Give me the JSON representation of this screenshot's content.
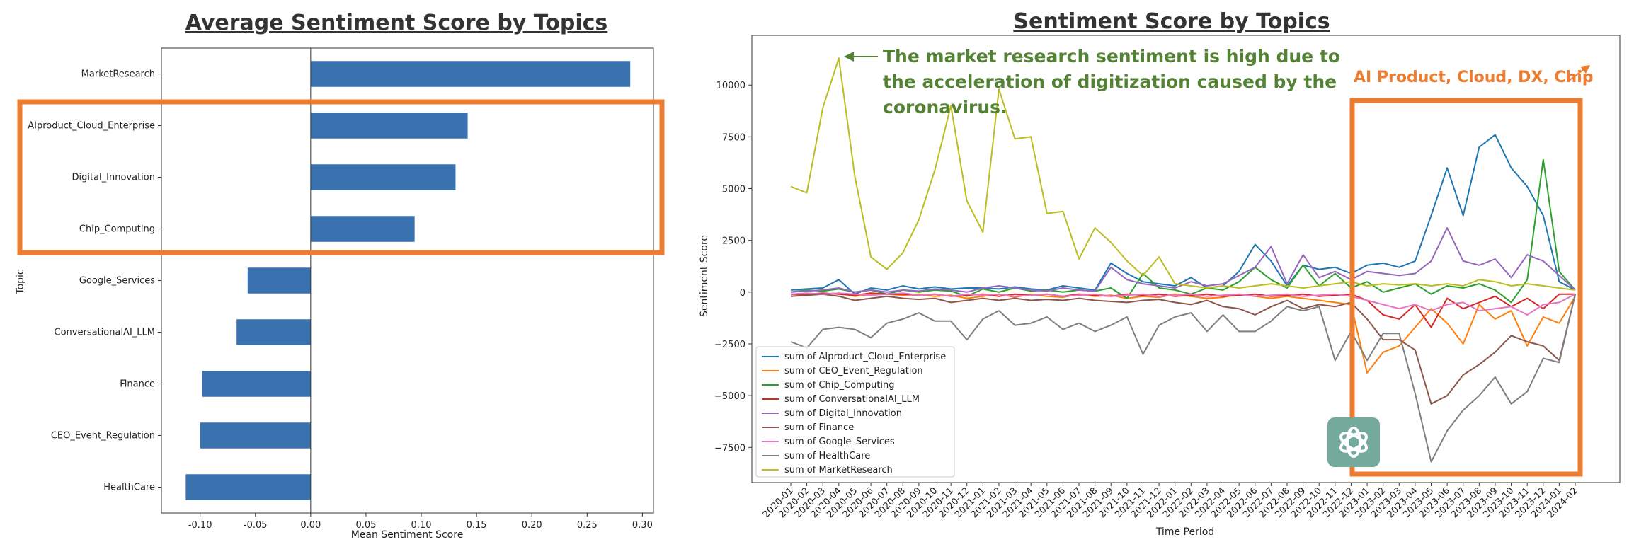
{
  "chart_data": [
    {
      "type": "bar",
      "orientation": "horizontal",
      "title": "Average Sentiment Score by Topics",
      "xlabel": "Mean Sentiment Score",
      "ylabel": "Topic",
      "xlim": [
        -0.135,
        0.31
      ],
      "xticks": [
        "-0.10",
        "-0.05",
        "0.00",
        "0.05",
        "0.10",
        "0.15",
        "0.20",
        "0.25",
        "0.30"
      ],
      "xtick_values": [
        -0.1,
        -0.05,
        0.0,
        0.05,
        0.1,
        0.15,
        0.2,
        0.25,
        0.3
      ],
      "categories": [
        "MarketResearch",
        "AIproduct_Cloud_Enterprise",
        "Digital_Innovation",
        "Chip_Computing",
        "Google_Services",
        "ConversationalAI_LLM",
        "Finance",
        "CEO_Event_Regulation",
        "HealthCare"
      ],
      "values": [
        0.289,
        0.142,
        0.131,
        0.094,
        -0.057,
        -0.067,
        -0.098,
        -0.1,
        -0.113
      ],
      "bar_color": "#3A72B0",
      "highlight_color": "#ED7D31",
      "highlight_categories": [
        "AIproduct_Cloud_Enterprise",
        "Digital_Innovation",
        "Chip_Computing"
      ]
    },
    {
      "type": "line",
      "title": "Sentiment Score by Topics",
      "xlabel": "Time Period",
      "ylabel": "Sentiment Score",
      "ylim": [
        -9200,
        12400
      ],
      "yticks": [
        "−7500",
        "−5000",
        "−2500",
        "0",
        "2500",
        "5000",
        "7500",
        "10000"
      ],
      "ytick_values": [
        -7500,
        -5000,
        -2500,
        0,
        2500,
        5000,
        7500,
        10000
      ],
      "x": [
        "2020-01",
        "2020-02",
        "2020-03",
        "2020-04",
        "2020-05",
        "2020-06",
        "2020-07",
        "2020-08",
        "2020-09",
        "2020-10",
        "2020-11",
        "2020-12",
        "2021-01",
        "2021-02",
        "2021-03",
        "2021-04",
        "2021-05",
        "2021-06",
        "2021-07",
        "2021-08",
        "2021-09",
        "2021-10",
        "2021-11",
        "2021-12",
        "2022-01",
        "2022-02",
        "2022-03",
        "2022-04",
        "2022-05",
        "2022-06",
        "2022-07",
        "2022-08",
        "2022-09",
        "2022-10",
        "2022-11",
        "2022-12",
        "2023-01",
        "2023-02",
        "2023-03",
        "2023-04",
        "2023-05",
        "2023-06",
        "2023-07",
        "2023-08",
        "2023-09",
        "2023-10",
        "2023-11",
        "2023-12",
        "2024-01",
        "2024-02"
      ],
      "legend_location": "lower-left",
      "series": [
        {
          "name": "sum of AIproduct_Cloud_Enterprise",
          "color": "#1f77b4",
          "values": [
            100,
            150,
            200,
            600,
            -100,
            200,
            100,
            300,
            150,
            250,
            150,
            200,
            200,
            150,
            250,
            150,
            100,
            300,
            200,
            100,
            1400,
            900,
            500,
            400,
            300,
            700,
            200,
            300,
            1000,
            2300,
            1500,
            300,
            1300,
            1100,
            1200,
            900,
            1300,
            1400,
            1200,
            1500,
            3700,
            6000,
            3700,
            7000,
            7600,
            6000,
            5100,
            3700,
            500,
            100
          ]
        },
        {
          "name": "sum of CEO_Event_Regulation",
          "color": "#ff7f0e",
          "values": [
            -100,
            -150,
            -100,
            -50,
            -200,
            -100,
            -100,
            -150,
            -100,
            -200,
            -150,
            -300,
            -200,
            -100,
            -250,
            -100,
            -200,
            -250,
            -100,
            -200,
            -150,
            -300,
            -200,
            -250,
            -100,
            -200,
            -300,
            -250,
            -100,
            -200,
            -300,
            -200,
            -300,
            -400,
            -500,
            -600,
            -3900,
            -2900,
            -2600,
            -1700,
            -800,
            -1500,
            -2500,
            -600,
            -1300,
            -900,
            -2600,
            -1200,
            -1500,
            -200
          ]
        },
        {
          "name": "sum of Chip_Computing",
          "color": "#2ca02c",
          "values": [
            0,
            100,
            50,
            150,
            0,
            100,
            -100,
            100,
            0,
            100,
            50,
            -200,
            150,
            0,
            200,
            50,
            100,
            0,
            100,
            50,
            200,
            -300,
            900,
            200,
            100,
            -100,
            200,
            100,
            500,
            1200,
            600,
            200,
            1300,
            300,
            900,
            200,
            500,
            0,
            200,
            400,
            -100,
            300,
            200,
            400,
            100,
            -500,
            600,
            6400,
            1000,
            100
          ]
        },
        {
          "name": "sum of ConversationalAI_LLM",
          "color": "#d62728",
          "values": [
            -100,
            -100,
            -50,
            -100,
            -150,
            -50,
            -100,
            -100,
            -150,
            -100,
            -200,
            -150,
            -100,
            -200,
            -100,
            -150,
            -100,
            -200,
            -100,
            -150,
            -200,
            -100,
            -150,
            -100,
            -200,
            -150,
            -100,
            -200,
            -150,
            -100,
            -200,
            -150,
            -100,
            -200,
            -150,
            -100,
            -400,
            -1100,
            -1300,
            -600,
            -1700,
            -300,
            -800,
            -500,
            -200,
            -700,
            -300,
            -800,
            -100,
            -100
          ]
        },
        {
          "name": "sum of Digital_Innovation",
          "color": "#9467bd",
          "values": [
            0,
            50,
            100,
            200,
            0,
            100,
            0,
            100,
            50,
            150,
            100,
            0,
            200,
            300,
            200,
            100,
            50,
            200,
            100,
            50,
            1200,
            600,
            400,
            300,
            200,
            500,
            300,
            400,
            800,
            1200,
            2200,
            400,
            1800,
            700,
            1000,
            600,
            1000,
            900,
            800,
            900,
            1500,
            3100,
            1500,
            1300,
            1600,
            700,
            1800,
            1500,
            800,
            100
          ]
        },
        {
          "name": "sum of Finance",
          "color": "#8c564b",
          "values": [
            -200,
            -150,
            -100,
            -200,
            -400,
            -300,
            -200,
            -300,
            -350,
            -300,
            -500,
            -400,
            -300,
            -400,
            -300,
            -400,
            -350,
            -400,
            -300,
            -400,
            -450,
            -500,
            -400,
            -350,
            -500,
            -600,
            -400,
            -700,
            -800,
            -1100,
            -700,
            -400,
            -800,
            -600,
            -700,
            -500,
            -1300,
            -2300,
            -2300,
            -2800,
            -5400,
            -5000,
            -4000,
            -3500,
            -2900,
            -2100,
            -2400,
            -2600,
            -3300,
            -100
          ]
        },
        {
          "name": "sum of Google_Services",
          "color": "#e377c2",
          "values": [
            -100,
            -50,
            -100,
            -50,
            -100,
            -150,
            -100,
            -50,
            -150,
            -100,
            -200,
            -100,
            -150,
            -100,
            -200,
            -150,
            -100,
            -200,
            -150,
            -100,
            -200,
            -150,
            -100,
            -200,
            -150,
            -100,
            -200,
            -150,
            -100,
            -200,
            -150,
            -100,
            -200,
            -150,
            -100,
            -200,
            -400,
            -600,
            -800,
            -600,
            -900,
            -600,
            -500,
            -900,
            -800,
            -700,
            -1100,
            -600,
            -500,
            -100
          ]
        },
        {
          "name": "sum of HealthCare",
          "color": "#7f7f7f",
          "values": [
            -2400,
            -2700,
            -1800,
            -1700,
            -1800,
            -2200,
            -1500,
            -1300,
            -1000,
            -1400,
            -1400,
            -2300,
            -1300,
            -900,
            -1600,
            -1500,
            -1200,
            -1800,
            -1500,
            -1900,
            -1600,
            -1200,
            -3000,
            -1600,
            -1200,
            -1000,
            -1900,
            -1100,
            -1900,
            -1900,
            -1400,
            -700,
            -900,
            -700,
            -3300,
            -1900,
            -3300,
            -2000,
            -2000,
            -4900,
            -8200,
            -6700,
            -5700,
            -5000,
            -4100,
            -5400,
            -4800,
            -3200,
            -3400,
            -100
          ]
        },
        {
          "name": "sum of MarketResearch",
          "color": "#bcbd22",
          "values": [
            5100,
            4800,
            8900,
            11300,
            5600,
            1700,
            1100,
            1900,
            3500,
            5900,
            9000,
            4400,
            2900,
            9800,
            7400,
            7500,
            3800,
            3900,
            1600,
            3100,
            2400,
            1500,
            800,
            1700,
            400,
            300,
            200,
            300,
            200,
            300,
            400,
            300,
            200,
            300,
            400,
            500,
            300,
            400,
            350,
            400,
            300,
            400,
            300,
            600,
            500,
            300,
            400,
            300,
            200,
            100
          ]
        }
      ]
    }
  ],
  "annotations": {
    "market_research_note": [
      "The market research sentiment is high due to",
      "the acceleration of digitization caused by the",
      "coronavirus."
    ],
    "ai_note": "AI Product, Cloud, DX, Chip"
  },
  "logo": {
    "icon": "openai-logo-icon",
    "color": "#74AA9C"
  }
}
